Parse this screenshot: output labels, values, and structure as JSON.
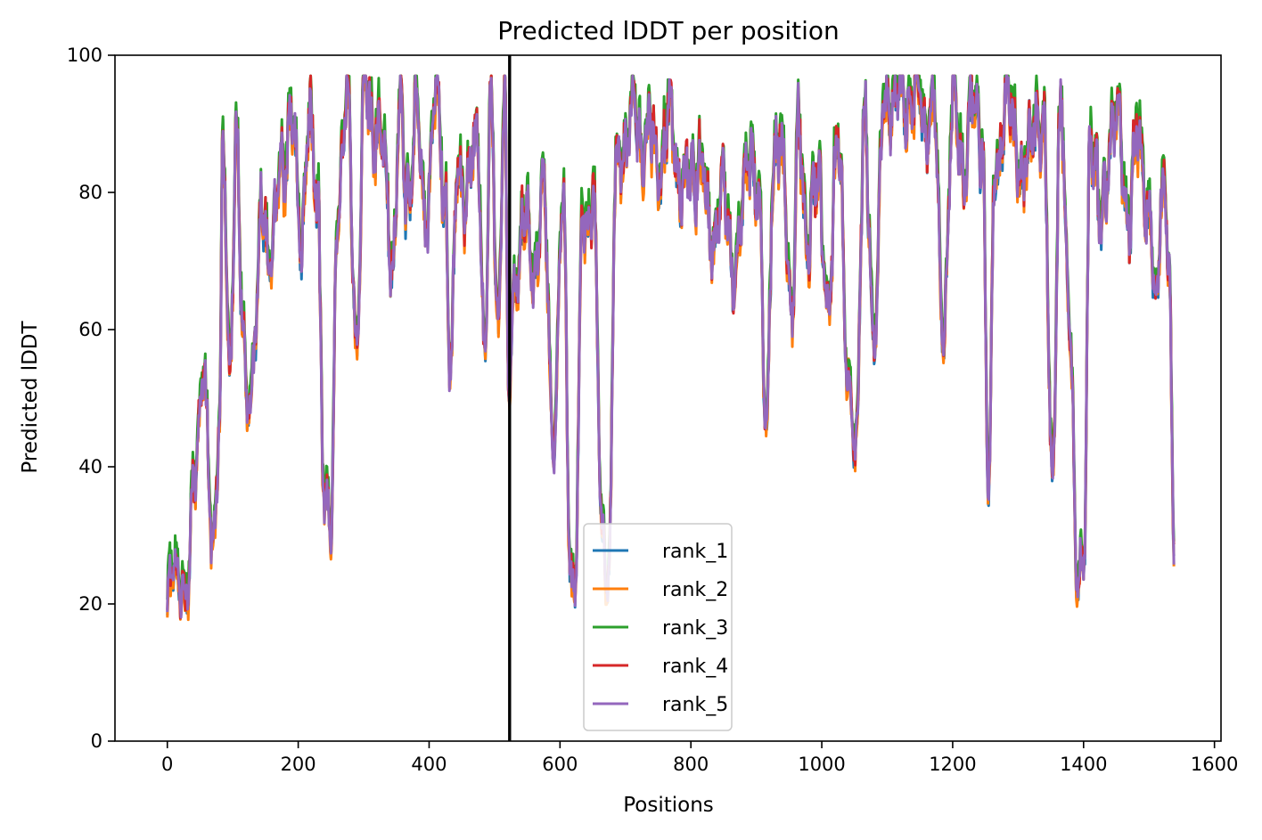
{
  "chart_data": {
    "type": "line",
    "title": "Predicted lDDT per position",
    "xlabel": "Positions",
    "ylabel": "Predicted lDDT",
    "xlim": [
      -80,
      1610
    ],
    "ylim": [
      0,
      100
    ],
    "x_ticks": [
      0,
      200,
      400,
      600,
      800,
      1000,
      1200,
      1400,
      1600
    ],
    "y_ticks": [
      0,
      20,
      40,
      60,
      80,
      100
    ],
    "grid": false,
    "legend_position": "lower center",
    "vertical_line": {
      "x": 523,
      "color": "#000000"
    },
    "anchors": {
      "x": [
        0,
        12,
        22,
        30,
        40,
        55,
        70,
        80,
        85,
        95,
        105,
        115,
        125,
        135,
        145,
        160,
        175,
        190,
        205,
        215,
        230,
        240,
        250,
        260,
        275,
        290,
        300,
        315,
        330,
        345,
        355,
        365,
        380,
        395,
        410,
        425,
        432,
        445,
        460,
        475,
        485,
        495,
        505,
        515,
        522,
        530,
        545,
        560,
        575,
        590,
        605,
        615,
        622,
        635,
        650,
        665,
        675,
        685,
        695,
        710,
        730,
        750,
        770,
        790,
        810,
        830,
        850,
        870,
        890,
        905,
        915,
        925,
        940,
        955,
        965,
        980,
        995,
        1010,
        1025,
        1040,
        1052,
        1065,
        1080,
        1095,
        1110,
        1125,
        1140,
        1155,
        1170,
        1185,
        1200,
        1215,
        1230,
        1245,
        1255,
        1265,
        1280,
        1295,
        1310,
        1325,
        1340,
        1352,
        1365,
        1380,
        1390,
        1400,
        1410,
        1425,
        1440,
        1455,
        1470,
        1485,
        1500,
        1510,
        1520,
        1530,
        1538
      ],
      "y": [
        20,
        27,
        22,
        18,
        40,
        52,
        30,
        45,
        85,
        55,
        87,
        60,
        50,
        58,
        80,
        70,
        86,
        88,
        75,
        88,
        80,
        35,
        30,
        80,
        92,
        58,
        93,
        92,
        85,
        70,
        90,
        80,
        91,
        78,
        92,
        82,
        53,
        85,
        80,
        88,
        57,
        90,
        62,
        92,
        48,
        68,
        75,
        70,
        78,
        45,
        78,
        30,
        20,
        75,
        80,
        30,
        25,
        80,
        88,
        90,
        88,
        85,
        90,
        80,
        85,
        75,
        78,
        70,
        88,
        75,
        47,
        80,
        88,
        60,
        92,
        70,
        85,
        60,
        93,
        50,
        45,
        88,
        60,
        90,
        95,
        92,
        95,
        90,
        93,
        60,
        92,
        85,
        92,
        90,
        37,
        85,
        92,
        90,
        80,
        93,
        85,
        40,
        90,
        60,
        23,
        25,
        90,
        75,
        88,
        90,
        75,
        90,
        75,
        62,
        85,
        70,
        30
      ]
    },
    "series": [
      {
        "name": "rank_1",
        "color": "#1f77b4",
        "seed": 11,
        "offset": -0.5
      },
      {
        "name": "rank_2",
        "color": "#ff7f0e",
        "seed": 23,
        "offset": -0.8
      },
      {
        "name": "rank_3",
        "color": "#2ca02c",
        "seed": 37,
        "offset": 1.8
      },
      {
        "name": "rank_4",
        "color": "#d62728",
        "seed": 51,
        "offset": 0.3
      },
      {
        "name": "rank_5",
        "color": "#9467bd",
        "seed": 67,
        "offset": 0.0
      }
    ]
  }
}
